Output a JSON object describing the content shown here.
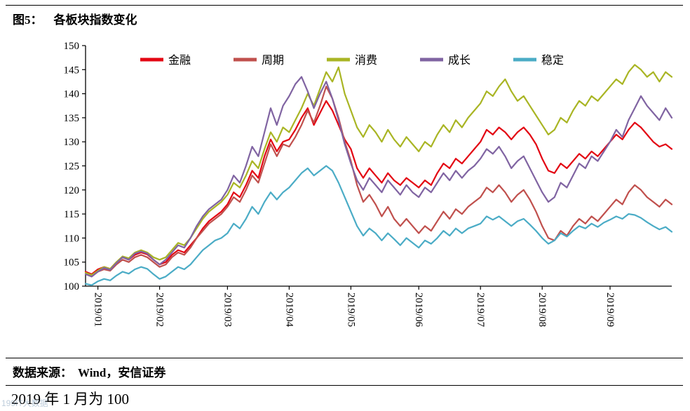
{
  "page": {
    "title_prefix": "图5：",
    "title_text": "各板块指数变化",
    "source_prefix": "数据来源：",
    "source_text": "Wind，安信证券",
    "footnote": "2019 年 1 月为 100",
    "watermark": "199IT大数据"
  },
  "chart_data": {
    "type": "line",
    "title": "各板块指数变化",
    "xlabel": "",
    "ylabel": "",
    "ylim": [
      100,
      150
    ],
    "y_ticks": [
      100,
      105,
      110,
      115,
      120,
      125,
      130,
      135,
      140,
      145,
      150
    ],
    "grid": false,
    "legend_position": "top",
    "n_points": 96,
    "x_tick_labels": [
      "2019/01",
      "2019/02",
      "2019/03",
      "2019/04",
      "2019/05",
      "2019/06",
      "2019/07",
      "2019/08",
      "2019/09"
    ],
    "x_tick_indices": [
      2,
      12,
      23,
      33,
      43,
      54,
      64,
      74,
      85
    ],
    "series": [
      {
        "name": "金融",
        "color": "#E30613",
        "values": [
          103.0,
          102.5,
          103.5,
          104.0,
          103.6,
          105.0,
          106.0,
          105.5,
          106.5,
          107.0,
          106.6,
          105.5,
          104.5,
          105.0,
          106.5,
          107.5,
          107.0,
          108.5,
          110.0,
          112.0,
          113.5,
          114.5,
          115.5,
          117.0,
          119.5,
          118.5,
          121.0,
          124.0,
          122.5,
          127.0,
          130.5,
          128.0,
          130.0,
          130.5,
          132.5,
          135.0,
          137.0,
          133.5,
          136.0,
          138.5,
          136.5,
          133.5,
          130.5,
          128.5,
          124.5,
          122.5,
          124.5,
          123.0,
          121.5,
          123.5,
          122.0,
          121.0,
          122.5,
          121.5,
          120.5,
          122.0,
          121.0,
          123.5,
          125.5,
          124.5,
          126.5,
          125.5,
          127.0,
          128.5,
          130.0,
          132.5,
          131.5,
          133.0,
          132.0,
          130.5,
          132.0,
          133.0,
          131.5,
          129.5,
          126.5,
          124.0,
          123.5,
          125.5,
          124.5,
          126.0,
          127.5,
          126.5,
          128.0,
          127.0,
          128.5,
          130.0,
          131.5,
          130.5,
          132.5,
          134.0,
          133.0,
          131.5,
          130.0,
          129.0,
          129.5,
          128.5
        ]
      },
      {
        "name": "周期",
        "color": "#C0504D",
        "values": [
          102.5,
          102.0,
          103.0,
          103.5,
          103.2,
          104.5,
          105.5,
          105.0,
          106.0,
          106.5,
          106.0,
          105.0,
          104.0,
          104.5,
          106.0,
          107.0,
          106.5,
          108.0,
          110.0,
          111.5,
          113.0,
          114.0,
          115.0,
          116.5,
          118.5,
          117.5,
          120.0,
          123.0,
          121.5,
          125.5,
          129.5,
          127.0,
          129.5,
          129.0,
          131.0,
          133.5,
          136.5,
          134.0,
          137.5,
          141.5,
          139.0,
          135.0,
          130.0,
          126.0,
          121.0,
          117.5,
          119.0,
          117.0,
          114.5,
          116.5,
          114.0,
          112.5,
          114.0,
          112.5,
          111.0,
          112.5,
          111.5,
          113.5,
          115.5,
          114.0,
          116.0,
          115.0,
          116.5,
          117.5,
          118.5,
          120.5,
          119.5,
          121.0,
          119.5,
          117.5,
          119.0,
          120.0,
          118.0,
          115.5,
          112.5,
          110.0,
          109.5,
          111.5,
          110.5,
          112.5,
          114.0,
          113.0,
          114.5,
          113.5,
          115.0,
          116.5,
          118.0,
          117.0,
          119.5,
          121.0,
          120.0,
          118.5,
          117.5,
          116.5,
          118.0,
          117.0
        ]
      },
      {
        "name": "消费",
        "color": "#A9B524",
        "values": [
          102.8,
          102.3,
          103.2,
          104.0,
          103.6,
          105.0,
          106.2,
          105.8,
          107.0,
          107.5,
          107.0,
          106.0,
          105.5,
          106.0,
          107.5,
          109.0,
          108.5,
          110.0,
          112.0,
          114.0,
          115.5,
          116.5,
          117.5,
          119.0,
          121.5,
          120.5,
          123.0,
          126.0,
          124.5,
          128.5,
          132.0,
          130.0,
          133.0,
          132.0,
          134.5,
          137.0,
          140.0,
          137.5,
          141.0,
          144.5,
          142.5,
          145.5,
          140.0,
          136.5,
          133.0,
          131.0,
          133.5,
          132.0,
          130.0,
          132.5,
          130.5,
          129.0,
          131.0,
          129.5,
          128.0,
          130.0,
          129.0,
          131.5,
          133.5,
          132.0,
          134.5,
          133.0,
          135.0,
          136.5,
          138.0,
          140.5,
          139.5,
          141.5,
          143.0,
          140.5,
          138.5,
          139.5,
          137.5,
          135.5,
          133.5,
          131.5,
          132.5,
          135.0,
          134.0,
          136.5,
          138.5,
          137.5,
          139.5,
          138.5,
          140.0,
          141.5,
          143.0,
          142.0,
          144.5,
          146.0,
          145.0,
          143.5,
          144.5,
          142.5,
          144.5,
          143.5
        ]
      },
      {
        "name": "成长",
        "color": "#8064A2",
        "values": [
          102.5,
          102.0,
          103.0,
          103.8,
          103.4,
          104.8,
          106.0,
          105.5,
          106.8,
          107.2,
          106.8,
          105.5,
          104.5,
          105.5,
          107.0,
          108.5,
          108.0,
          110.0,
          112.5,
          114.5,
          116.0,
          117.0,
          118.0,
          120.0,
          123.0,
          121.5,
          125.0,
          129.0,
          127.0,
          132.0,
          137.0,
          133.5,
          137.5,
          139.5,
          142.0,
          143.5,
          140.5,
          137.0,
          140.0,
          142.5,
          139.0,
          134.5,
          129.5,
          125.5,
          122.0,
          120.0,
          122.5,
          121.0,
          119.5,
          122.0,
          120.5,
          119.0,
          121.0,
          119.5,
          118.5,
          120.5,
          119.5,
          121.5,
          123.5,
          122.0,
          124.0,
          122.5,
          124.0,
          125.0,
          126.5,
          128.5,
          127.5,
          129.0,
          127.0,
          124.5,
          126.0,
          127.0,
          124.5,
          122.0,
          119.5,
          117.5,
          118.5,
          121.5,
          120.5,
          123.0,
          125.5,
          124.5,
          127.0,
          126.0,
          128.0,
          130.0,
          132.5,
          131.0,
          134.5,
          137.0,
          139.5,
          137.5,
          136.0,
          134.5,
          137.0,
          135.0
        ]
      },
      {
        "name": "稳定",
        "color": "#4BACC6",
        "values": [
          100.5,
          100.2,
          101.0,
          101.5,
          101.2,
          102.2,
          103.0,
          102.6,
          103.5,
          104.0,
          103.6,
          102.5,
          101.5,
          102.0,
          103.0,
          104.0,
          103.5,
          104.5,
          106.0,
          107.5,
          108.5,
          109.5,
          110.0,
          111.0,
          113.0,
          112.0,
          114.0,
          116.5,
          115.0,
          117.5,
          119.5,
          118.0,
          119.5,
          120.5,
          122.0,
          123.5,
          124.5,
          123.0,
          124.0,
          125.0,
          124.0,
          121.5,
          118.5,
          115.5,
          112.5,
          110.5,
          112.0,
          111.0,
          109.5,
          111.0,
          109.8,
          108.5,
          110.0,
          109.0,
          108.0,
          109.5,
          108.8,
          110.0,
          111.5,
          110.5,
          112.0,
          111.0,
          112.0,
          112.5,
          113.0,
          114.5,
          113.8,
          114.5,
          113.5,
          112.5,
          113.5,
          114.0,
          112.8,
          111.5,
          110.0,
          108.8,
          109.5,
          111.0,
          110.3,
          111.5,
          112.5,
          112.0,
          113.0,
          112.3,
          113.2,
          113.8,
          114.5,
          114.0,
          115.0,
          114.8,
          114.2,
          113.3,
          112.5,
          111.8,
          112.3,
          111.3
        ]
      }
    ]
  }
}
